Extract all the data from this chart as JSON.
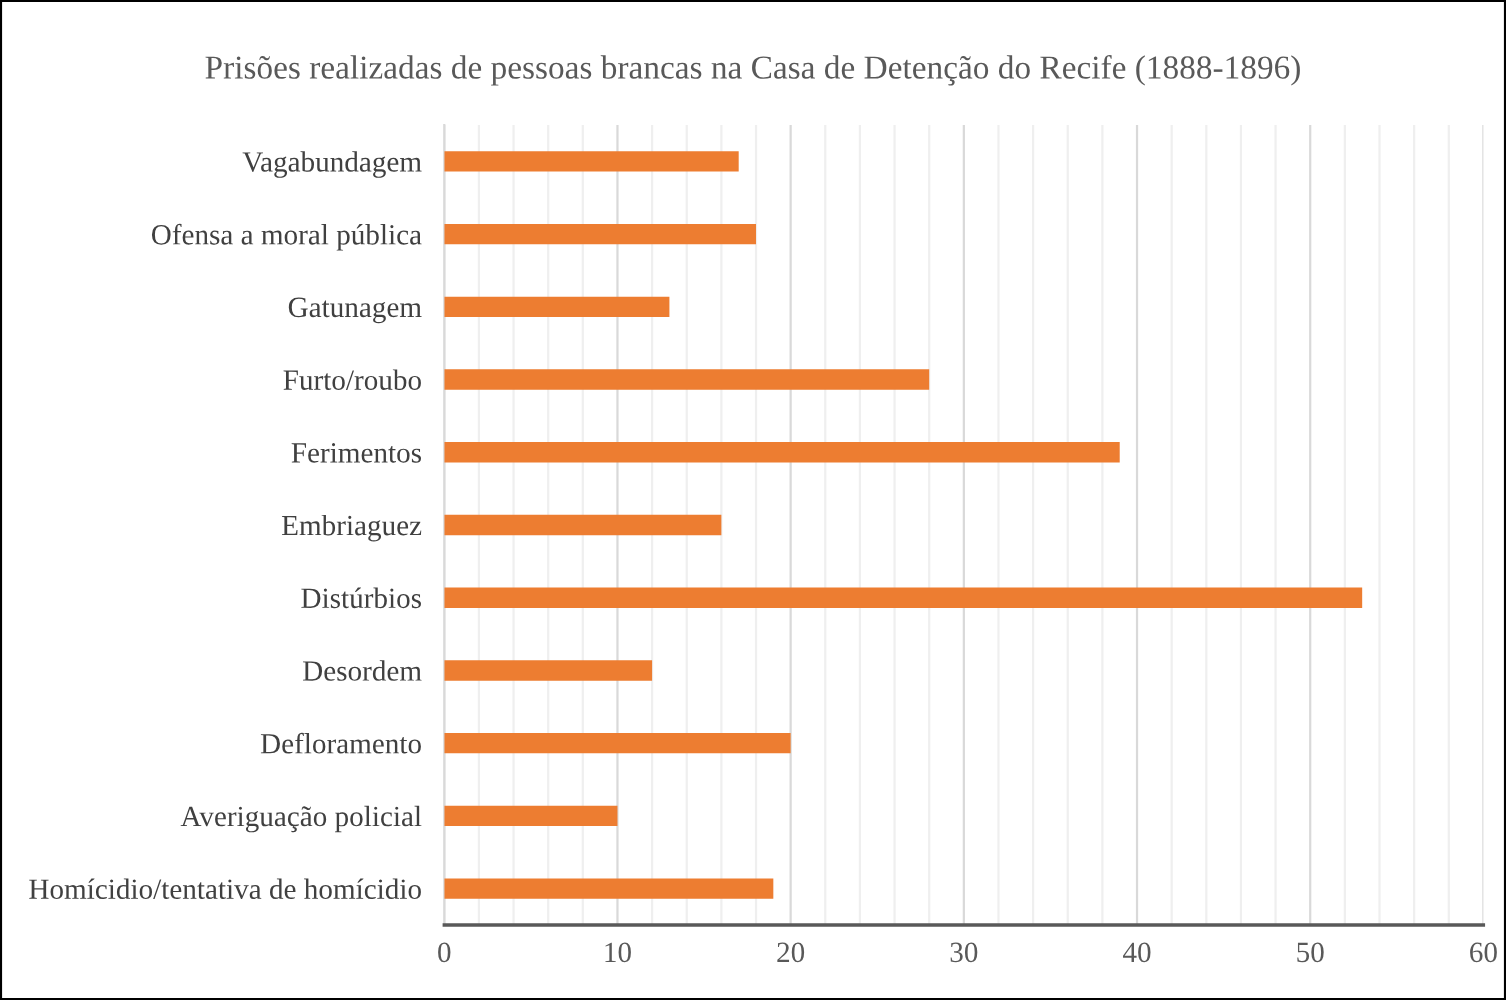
{
  "chart_data": {
    "type": "bar",
    "orientation": "horizontal",
    "title": "Prisões realizadas de pessoas brancas na Casa de Detenção do Recife (1888-1896)",
    "categories": [
      "Vagabundagem",
      "Ofensa a moral pública",
      "Gatunagem",
      "Furto/roubo",
      "Ferimentos",
      "Embriaguez",
      "Distúrbios",
      "Desordem",
      "Defloramento",
      "Averiguação policial",
      "Homícidio/tentativa de homícidio"
    ],
    "values": [
      17,
      18,
      13,
      28,
      39,
      16,
      53,
      12,
      20,
      10,
      19
    ],
    "color": "#ed7d31",
    "xlim": [
      0,
      60
    ],
    "xticks": [
      0,
      {
        "value": 2,
        "label": null
      },
      {
        "value": 4,
        "label": null
      },
      {
        "value": 6,
        "label": null
      },
      {
        "value": 8,
        "label": null
      },
      10,
      {
        "value": 12,
        "label": null
      },
      {
        "value": 14,
        "label": null
      },
      {
        "value": 16,
        "label": null
      },
      {
        "value": 18,
        "label": null
      },
      20,
      {
        "value": 22,
        "label": null
      },
      {
        "value": 24,
        "label": null
      },
      {
        "value": 26,
        "label": null
      },
      {
        "value": 28,
        "label": null
      },
      30,
      {
        "value": 32,
        "label": null
      },
      {
        "value": 34,
        "label": null
      },
      {
        "value": 36,
        "label": null
      },
      {
        "value": 38,
        "label": null
      },
      40,
      {
        "value": 42,
        "label": null
      },
      {
        "value": 44,
        "label": null
      },
      {
        "value": 46,
        "label": null
      },
      {
        "value": 48,
        "label": null
      },
      50,
      {
        "value": 52,
        "label": null
      },
      {
        "value": 54,
        "label": null
      },
      {
        "value": 56,
        "label": null
      },
      {
        "value": 58,
        "label": null
      },
      60
    ],
    "grid": "x"
  }
}
